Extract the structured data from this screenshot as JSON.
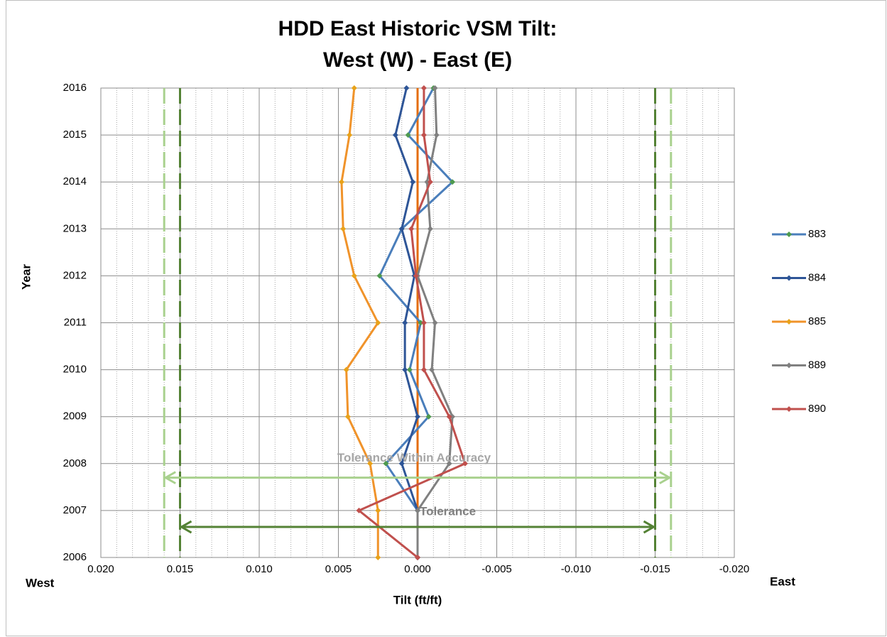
{
  "chart_data": {
    "type": "line",
    "title_lines": [
      "HDD East Historic VSM Tilt:",
      "West (W) - East (E)"
    ],
    "xlabel": "Tilt (ft/ft)",
    "ylabel": "Year",
    "x_end_labels": [
      "West",
      "East"
    ],
    "y": [
      2006,
      2007,
      2008,
      2009,
      2010,
      2011,
      2012,
      2013,
      2014,
      2015,
      2016
    ],
    "series": [
      {
        "name": "883",
        "color": "#4a7ebb",
        "marker_color": "#4e9a4e",
        "values": [
          0,
          0,
          0.002,
          -0.0007,
          0.0005,
          -0.0002,
          0.0024,
          0.001,
          -0.0022,
          0.0006,
          -0.001
        ]
      },
      {
        "name": "884",
        "color": "#2e5597",
        "marker_color": "#2e5597",
        "values": [
          0,
          0,
          0.001,
          0,
          0.0008,
          0.0008,
          0.0002,
          0.001,
          0.0003,
          0.0014,
          0.0007
        ]
      },
      {
        "name": "885",
        "color": "#f0932a",
        "marker_color": "#e8a21a",
        "values": [
          0.0025,
          0.0025,
          0.003,
          0.0044,
          0.0045,
          0.0025,
          0.004,
          0.0047,
          0.0048,
          0.0043,
          0.004
        ]
      },
      {
        "name": "889",
        "color": "#808080",
        "marker_color": "#808080",
        "values": [
          0,
          0,
          -0.002,
          -0.0022,
          -0.0009,
          -0.0011,
          0,
          -0.0008,
          -0.0006,
          -0.0012,
          -0.0011
        ]
      },
      {
        "name": "890",
        "color": "#c0504d",
        "marker_color": "#c0504d",
        "values": [
          0,
          0.0037,
          -0.003,
          -0.002,
          -0.0004,
          -0.0004,
          0.0001,
          0.0004,
          -0.0008,
          -0.0004,
          -0.0004
        ]
      }
    ],
    "xlim": [
      0.02,
      -0.02
    ],
    "xticks": [
      {
        "value": 0.02,
        "label": "0.020"
      },
      {
        "value": 0.015,
        "label": "0.015"
      },
      {
        "value": 0.01,
        "label": "0.010"
      },
      {
        "value": 0.005,
        "label": "0.005"
      },
      {
        "value": 0,
        "label": "0.000"
      },
      {
        "value": -0.005,
        "label": "-0.005"
      },
      {
        "value": -0.01,
        "label": "-0.010"
      },
      {
        "value": -0.015,
        "label": "-0.015"
      },
      {
        "value": -0.02,
        "label": "-0.020"
      }
    ],
    "xminor_step": 0.001,
    "ylim": [
      2006,
      2016
    ],
    "yticks": [
      2006,
      2007,
      2008,
      2009,
      2010,
      2011,
      2012,
      2013,
      2014,
      2015,
      2016
    ],
    "grid": true,
    "legend": "right",
    "reference_lines": [
      {
        "x": 0.016,
        "color": "#a9d18e",
        "style": "dashed"
      },
      {
        "x": -0.016,
        "color": "#a9d18e",
        "style": "dashed"
      },
      {
        "x": 0.015,
        "color": "#548235",
        "style": "dashed"
      },
      {
        "x": -0.015,
        "color": "#548235",
        "style": "dashed"
      },
      {
        "x": 0,
        "color": "#e46c0a",
        "style": "solid"
      }
    ],
    "arrows": [
      {
        "label": "Tolerance Within Accuracy",
        "x": [
          0.016,
          -0.016
        ],
        "y": 2007.7,
        "color": "#a9d18e"
      },
      {
        "label": "Tolerance",
        "x": [
          0.015,
          -0.015
        ],
        "y": 2006.65,
        "color": "#548235"
      }
    ]
  }
}
